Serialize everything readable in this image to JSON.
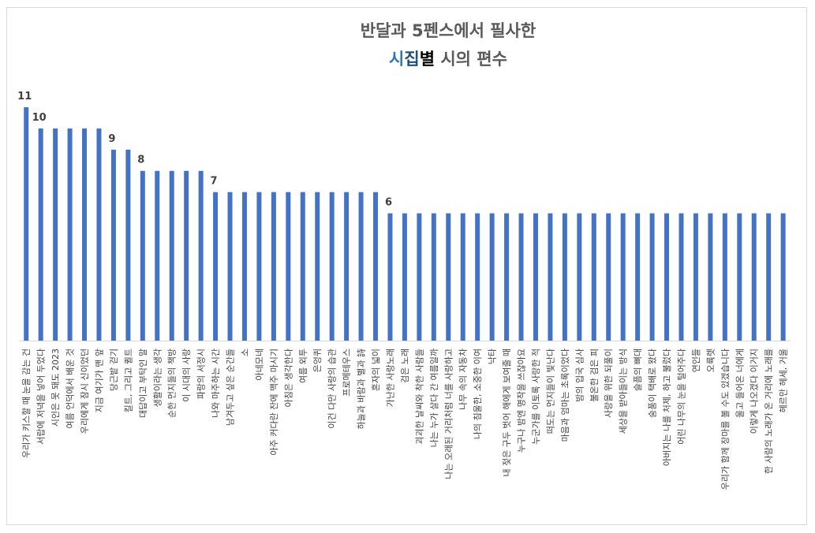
{
  "chart_data": {
    "type": "bar",
    "title_line1": "반달과 5펜스에서 필사한",
    "title_line2_parts": [
      {
        "text": "시",
        "color": "#2e75b6"
      },
      {
        "text": "집",
        "color": "#1f4e79"
      },
      {
        "text": "별",
        "color": "#000000"
      },
      {
        "text": " 시의 편수",
        "color": "#595959"
      }
    ],
    "bar_color": "#4472c4",
    "axis_color": "#d9d9d9",
    "ylim": [
      0,
      11
    ],
    "categories": [
      "우리가 키스할 때 눈을 감는 건",
      "서랍에 저녁을 넣어 두었다",
      "시인은 못 돼도 2023",
      "여름 언덕에서 배운 것",
      "우리에게 잠시 신이었던",
      "지금 여기가 맨 앞",
      "당근밭 걷기",
      "킬트, 그리고 퀼트",
      "대답이고 부탁인 말",
      "생활이라는 생각",
      "순한 먼지들의 책방",
      "이 시대의 사랑",
      "파랑의 서정시",
      "나와 마주하는 시간",
      "남겨두고 싶은 순간들",
      "소",
      "아네모네",
      "아주 커다란 잔에 맥주 마시기",
      "아침은 생각한다",
      "여름 외투",
      "은엉퀴",
      "이건 다만 사랑의 습관",
      "프로메테우스",
      "하늘과 바람과 별과 詩",
      "혼자의 넓이",
      "가난한 사랑노래",
      "검은 노래",
      "괴괴한 날씨와 착한 사람들",
      "나는 누가 살다 간 여름일까",
      "나는 오래된 거리처럼 너를 사랑하고",
      "나무 속의 자동차",
      "나의 침울한, 소중한 이여",
      "낙타",
      "내 젖은 구두 벗어 해에게 보여줄 때",
      "누구나 밤엔 명작을 쓰잖아요",
      "누군가를 이토록 사랑한 적",
      "떠도는 먼지들이 빛난다",
      "마음과 엄마는 초록이었다",
      "밤의 입국 심사",
      "불온한 검은 피",
      "사랑을 위한 되풀이",
      "세상을 받아들이는 방식",
      "슬픔의 뼈대",
      "숨품이 택배로 왔다",
      "아버지는 나를 처제, 하고 불렀다",
      "어린 나무의 눈을 털어주다",
      "연인들",
      "오륙렛",
      "우리가 함께 장마를 볼 수도 있겠습니다",
      "울고 들어온 너에게",
      "이렇게 나오겠다 이거지",
      "한 사람의 노래가 온 거리에 노래를",
      "헤르만 헤세, 거울"
    ],
    "values": [
      11,
      10,
      10,
      10,
      10,
      10,
      9,
      9,
      8,
      8,
      8,
      8,
      8,
      7,
      7,
      7,
      7,
      7,
      7,
      7,
      7,
      7,
      7,
      7,
      7,
      6,
      6,
      6,
      6,
      6,
      6,
      6,
      6,
      6,
      6,
      6,
      6,
      6,
      6,
      6,
      6,
      6,
      6,
      6,
      6,
      6,
      6,
      6,
      6,
      6,
      6,
      6,
      6
    ],
    "data_labels": [
      {
        "index": 0,
        "text": "11"
      },
      {
        "index": 1,
        "text": "10"
      },
      {
        "index": 6,
        "text": "9"
      },
      {
        "index": 8,
        "text": "8"
      },
      {
        "index": 13,
        "text": "7"
      },
      {
        "index": 25,
        "text": "6"
      }
    ]
  }
}
